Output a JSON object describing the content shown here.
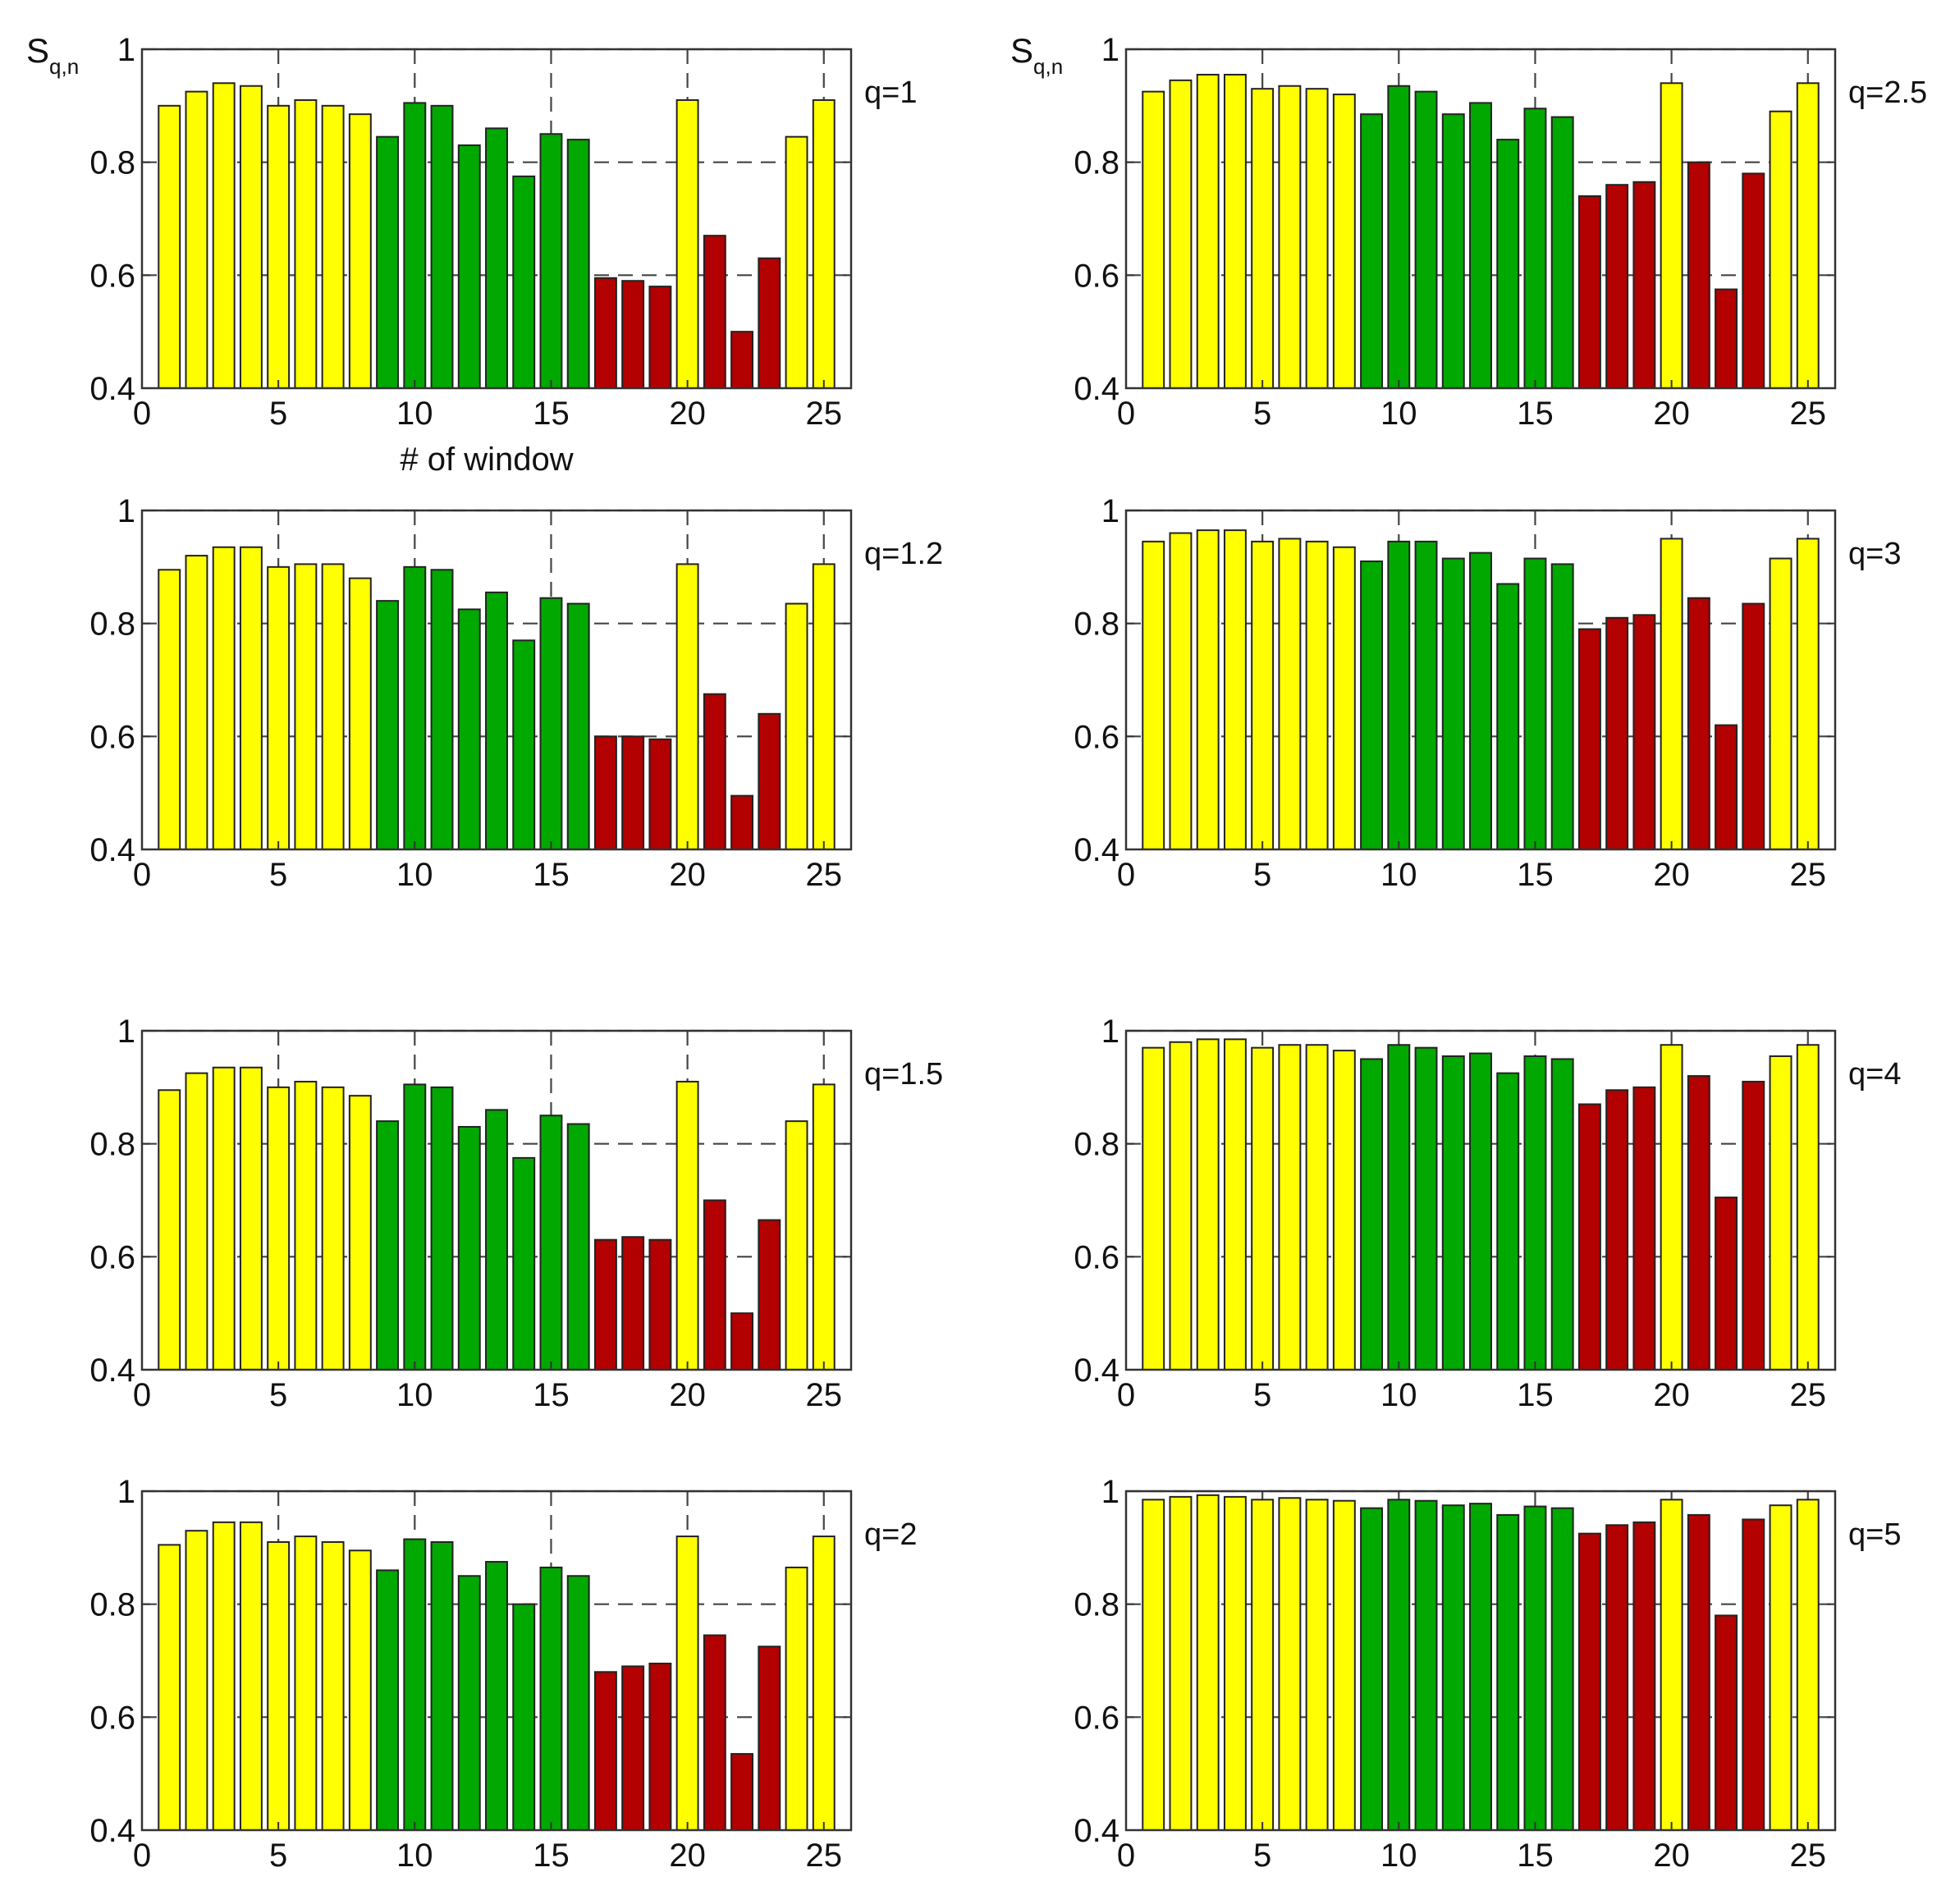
{
  "colors": {
    "yellow": "#ffff00",
    "green": "#00a800",
    "red": "#b30000",
    "frame": "#333333"
  },
  "chart_data": [
    {
      "type": "bar",
      "label": "q=1",
      "ylabel": "S",
      "ylabel_sub": "q,n",
      "xlabel": "# of window",
      "xlim": [
        0,
        26
      ],
      "ylim": [
        0.4,
        1
      ],
      "xticks": [
        "0",
        "5",
        "10",
        "15",
        "20",
        "25"
      ],
      "yticks": [
        "0.4",
        "0.6",
        "0.8",
        "1"
      ],
      "grid": "dashed",
      "categories": [
        1,
        2,
        3,
        4,
        5,
        6,
        7,
        8,
        9,
        10,
        11,
        12,
        13,
        14,
        15,
        16,
        17,
        18,
        19,
        20,
        21,
        22,
        23,
        24,
        25
      ],
      "group": [
        "yellow",
        "yellow",
        "yellow",
        "yellow",
        "yellow",
        "yellow",
        "yellow",
        "yellow",
        "green",
        "green",
        "green",
        "green",
        "green",
        "green",
        "green",
        "green",
        "red",
        "red",
        "red",
        "yellow",
        "red",
        "red",
        "red",
        "yellow",
        "yellow"
      ],
      "values": [
        0.9,
        0.925,
        0.94,
        0.935,
        0.9,
        0.91,
        0.9,
        0.885,
        0.845,
        0.905,
        0.9,
        0.83,
        0.86,
        0.775,
        0.85,
        0.84,
        0.595,
        0.59,
        0.58,
        0.91,
        0.67,
        0.5,
        0.63,
        0.845,
        0.91
      ]
    },
    {
      "type": "bar",
      "label": "q=2.5",
      "ylabel": "S",
      "ylabel_sub": "q,n",
      "xlabel": "",
      "xlim": [
        0,
        26
      ],
      "ylim": [
        0.4,
        1
      ],
      "xticks": [
        "0",
        "5",
        "10",
        "15",
        "20",
        "25"
      ],
      "yticks": [
        "0.4",
        "0.6",
        "0.8",
        "1"
      ],
      "grid": "dashed",
      "categories": [
        1,
        2,
        3,
        4,
        5,
        6,
        7,
        8,
        9,
        10,
        11,
        12,
        13,
        14,
        15,
        16,
        17,
        18,
        19,
        20,
        21,
        22,
        23,
        24,
        25
      ],
      "group": [
        "yellow",
        "yellow",
        "yellow",
        "yellow",
        "yellow",
        "yellow",
        "yellow",
        "yellow",
        "green",
        "green",
        "green",
        "green",
        "green",
        "green",
        "green",
        "green",
        "red",
        "red",
        "red",
        "yellow",
        "red",
        "red",
        "red",
        "yellow",
        "yellow"
      ],
      "values": [
        0.925,
        0.945,
        0.955,
        0.955,
        0.93,
        0.935,
        0.93,
        0.92,
        0.885,
        0.935,
        0.925,
        0.885,
        0.905,
        0.84,
        0.895,
        0.88,
        0.74,
        0.76,
        0.765,
        0.94,
        0.8,
        0.575,
        0.78,
        0.89,
        0.94
      ]
    },
    {
      "type": "bar",
      "label": "q=1.2",
      "ylabel": "",
      "ylabel_sub": "",
      "xlabel": "",
      "xlim": [
        0,
        26
      ],
      "ylim": [
        0.4,
        1
      ],
      "xticks": [
        "0",
        "5",
        "10",
        "15",
        "20",
        "25"
      ],
      "yticks": [
        "0.4",
        "0.6",
        "0.8",
        "1"
      ],
      "grid": "dashed",
      "categories": [
        1,
        2,
        3,
        4,
        5,
        6,
        7,
        8,
        9,
        10,
        11,
        12,
        13,
        14,
        15,
        16,
        17,
        18,
        19,
        20,
        21,
        22,
        23,
        24,
        25
      ],
      "group": [
        "yellow",
        "yellow",
        "yellow",
        "yellow",
        "yellow",
        "yellow",
        "yellow",
        "yellow",
        "green",
        "green",
        "green",
        "green",
        "green",
        "green",
        "green",
        "green",
        "red",
        "red",
        "red",
        "yellow",
        "red",
        "red",
        "red",
        "yellow",
        "yellow"
      ],
      "values": [
        0.895,
        0.92,
        0.935,
        0.935,
        0.9,
        0.905,
        0.905,
        0.88,
        0.84,
        0.9,
        0.895,
        0.825,
        0.855,
        0.77,
        0.845,
        0.835,
        0.6,
        0.6,
        0.595,
        0.905,
        0.675,
        0.495,
        0.64,
        0.835,
        0.905
      ]
    },
    {
      "type": "bar",
      "label": "q=3",
      "ylabel": "",
      "ylabel_sub": "",
      "xlabel": "",
      "xlim": [
        0,
        26
      ],
      "ylim": [
        0.4,
        1
      ],
      "xticks": [
        "0",
        "5",
        "10",
        "15",
        "20",
        "25"
      ],
      "yticks": [
        "0.4",
        "0.6",
        "0.8",
        "1"
      ],
      "grid": "dashed",
      "categories": [
        1,
        2,
        3,
        4,
        5,
        6,
        7,
        8,
        9,
        10,
        11,
        12,
        13,
        14,
        15,
        16,
        17,
        18,
        19,
        20,
        21,
        22,
        23,
        24,
        25
      ],
      "group": [
        "yellow",
        "yellow",
        "yellow",
        "yellow",
        "yellow",
        "yellow",
        "yellow",
        "yellow",
        "green",
        "green",
        "green",
        "green",
        "green",
        "green",
        "green",
        "green",
        "red",
        "red",
        "red",
        "yellow",
        "red",
        "red",
        "red",
        "yellow",
        "yellow"
      ],
      "values": [
        0.945,
        0.96,
        0.965,
        0.965,
        0.945,
        0.95,
        0.945,
        0.935,
        0.91,
        0.945,
        0.945,
        0.915,
        0.925,
        0.87,
        0.915,
        0.905,
        0.79,
        0.81,
        0.815,
        0.95,
        0.845,
        0.62,
        0.835,
        0.915,
        0.95
      ]
    },
    {
      "type": "bar",
      "label": "q=1.5",
      "ylabel": "",
      "ylabel_sub": "",
      "xlabel": "",
      "xlim": [
        0,
        26
      ],
      "ylim": [
        0.4,
        1
      ],
      "xticks": [
        "0",
        "5",
        "10",
        "15",
        "20",
        "25"
      ],
      "yticks": [
        "0.4",
        "0.6",
        "0.8",
        "1"
      ],
      "grid": "dashed",
      "categories": [
        1,
        2,
        3,
        4,
        5,
        6,
        7,
        8,
        9,
        10,
        11,
        12,
        13,
        14,
        15,
        16,
        17,
        18,
        19,
        20,
        21,
        22,
        23,
        24,
        25
      ],
      "group": [
        "yellow",
        "yellow",
        "yellow",
        "yellow",
        "yellow",
        "yellow",
        "yellow",
        "yellow",
        "green",
        "green",
        "green",
        "green",
        "green",
        "green",
        "green",
        "green",
        "red",
        "red",
        "red",
        "yellow",
        "red",
        "red",
        "red",
        "yellow",
        "yellow"
      ],
      "values": [
        0.895,
        0.925,
        0.935,
        0.935,
        0.9,
        0.91,
        0.9,
        0.885,
        0.84,
        0.905,
        0.9,
        0.83,
        0.86,
        0.775,
        0.85,
        0.835,
        0.63,
        0.635,
        0.63,
        0.91,
        0.7,
        0.5,
        0.665,
        0.84,
        0.905
      ]
    },
    {
      "type": "bar",
      "label": "q=4",
      "ylabel": "",
      "ylabel_sub": "",
      "xlabel": "",
      "xlim": [
        0,
        26
      ],
      "ylim": [
        0.4,
        1
      ],
      "xticks": [
        "0",
        "5",
        "10",
        "15",
        "20",
        "25"
      ],
      "yticks": [
        "0.4",
        "0.6",
        "0.8",
        "1"
      ],
      "grid": "dashed",
      "categories": [
        1,
        2,
        3,
        4,
        5,
        6,
        7,
        8,
        9,
        10,
        11,
        12,
        13,
        14,
        15,
        16,
        17,
        18,
        19,
        20,
        21,
        22,
        23,
        24,
        25
      ],
      "group": [
        "yellow",
        "yellow",
        "yellow",
        "yellow",
        "yellow",
        "yellow",
        "yellow",
        "yellow",
        "green",
        "green",
        "green",
        "green",
        "green",
        "green",
        "green",
        "green",
        "red",
        "red",
        "red",
        "yellow",
        "red",
        "red",
        "red",
        "yellow",
        "yellow"
      ],
      "values": [
        0.97,
        0.98,
        0.985,
        0.985,
        0.97,
        0.975,
        0.975,
        0.965,
        0.95,
        0.975,
        0.97,
        0.955,
        0.96,
        0.925,
        0.955,
        0.95,
        0.87,
        0.895,
        0.9,
        0.975,
        0.92,
        0.705,
        0.91,
        0.955,
        0.975
      ]
    },
    {
      "type": "bar",
      "label": "q=2",
      "ylabel": "",
      "ylabel_sub": "",
      "xlabel": "",
      "xlim": [
        0,
        26
      ],
      "ylim": [
        0.4,
        1
      ],
      "xticks": [
        "0",
        "5",
        "10",
        "15",
        "20",
        "25"
      ],
      "yticks": [
        "0.4",
        "0.6",
        "0.8",
        "1"
      ],
      "grid": "dashed",
      "categories": [
        1,
        2,
        3,
        4,
        5,
        6,
        7,
        8,
        9,
        10,
        11,
        12,
        13,
        14,
        15,
        16,
        17,
        18,
        19,
        20,
        21,
        22,
        23,
        24,
        25
      ],
      "group": [
        "yellow",
        "yellow",
        "yellow",
        "yellow",
        "yellow",
        "yellow",
        "yellow",
        "yellow",
        "green",
        "green",
        "green",
        "green",
        "green",
        "green",
        "green",
        "green",
        "red",
        "red",
        "red",
        "yellow",
        "red",
        "red",
        "red",
        "yellow",
        "yellow"
      ],
      "values": [
        0.905,
        0.93,
        0.945,
        0.945,
        0.91,
        0.92,
        0.91,
        0.895,
        0.86,
        0.915,
        0.91,
        0.85,
        0.875,
        0.8,
        0.865,
        0.85,
        0.68,
        0.69,
        0.695,
        0.92,
        0.745,
        0.535,
        0.725,
        0.865,
        0.92
      ]
    },
    {
      "type": "bar",
      "label": "q=5",
      "ylabel": "",
      "ylabel_sub": "",
      "xlabel": "",
      "xlim": [
        0,
        26
      ],
      "ylim": [
        0.4,
        1
      ],
      "xticks": [
        "0",
        "5",
        "10",
        "15",
        "20",
        "25"
      ],
      "yticks": [
        "0.4",
        "0.6",
        "0.8",
        "1"
      ],
      "grid": "dashed",
      "categories": [
        1,
        2,
        3,
        4,
        5,
        6,
        7,
        8,
        9,
        10,
        11,
        12,
        13,
        14,
        15,
        16,
        17,
        18,
        19,
        20,
        21,
        22,
        23,
        24,
        25
      ],
      "group": [
        "yellow",
        "yellow",
        "yellow",
        "yellow",
        "yellow",
        "yellow",
        "yellow",
        "yellow",
        "green",
        "green",
        "green",
        "green",
        "green",
        "green",
        "green",
        "green",
        "red",
        "red",
        "red",
        "yellow",
        "red",
        "red",
        "red",
        "yellow",
        "yellow"
      ],
      "values": [
        0.985,
        0.99,
        0.993,
        0.99,
        0.985,
        0.988,
        0.985,
        0.983,
        0.97,
        0.985,
        0.983,
        0.975,
        0.978,
        0.958,
        0.973,
        0.97,
        0.925,
        0.94,
        0.945,
        0.985,
        0.958,
        0.78,
        0.95,
        0.975,
        0.985
      ]
    }
  ]
}
